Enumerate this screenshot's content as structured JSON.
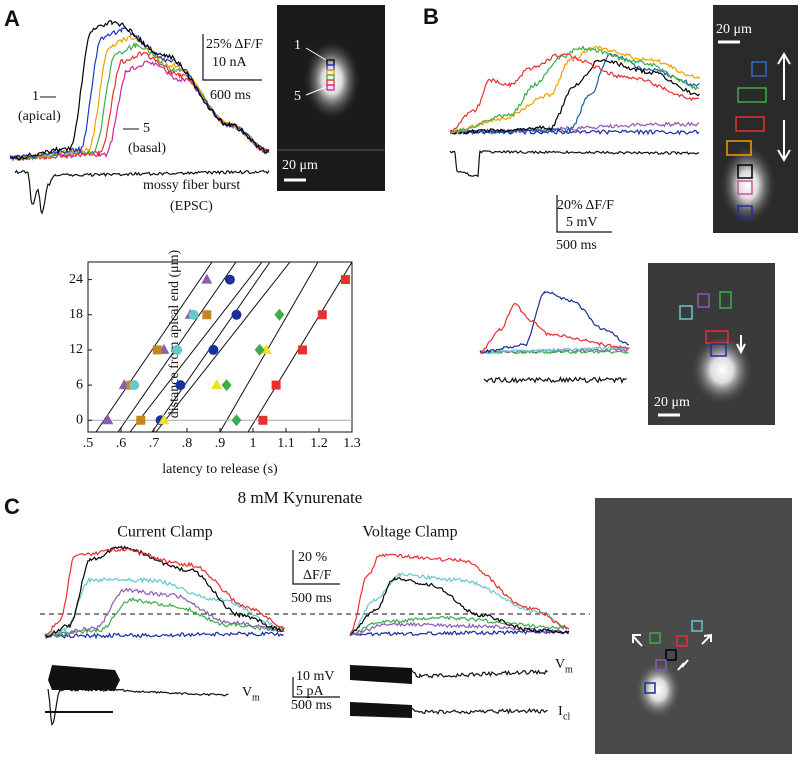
{
  "panels": {
    "a": "A",
    "b": "B",
    "c": "C"
  },
  "panel_a": {
    "label_1": "1",
    "apical": "(apical)",
    "label_5": "5",
    "basal": "(basal)",
    "burst": "mossy fiber burst",
    "epsc": "(EPSC)",
    "scale_df": "25% ΔF/F",
    "scale_na": "10 nA",
    "scale_ms": "600 ms",
    "img_1": "1",
    "img_5": "5",
    "img_scale": "20 μm"
  },
  "panel_b": {
    "img_scale": "20 μm",
    "scale_df": "20%  ΔF/F",
    "scale_mv": "5 mV",
    "scale_ms": "500 ms",
    "img2_scale": "20 μm"
  },
  "panel_c": {
    "title": "8 mM Kynurenate",
    "current_clamp": "Current Clamp",
    "voltage_clamp": "Voltage Clamp",
    "scale_pct": "20 %",
    "scale_df": "ΔF/F",
    "scale_ms": "500 ms",
    "scale_mv": "10 mV",
    "scale_pa": "5 pA",
    "scale_ms2": "500 ms",
    "vm_left": "V",
    "vm_left_sub": "m",
    "vm_right": "V",
    "vm_right_sub": "m",
    "icl": "I",
    "icl_sub": "cl"
  },
  "chart_data": {
    "type": "scatter",
    "xlabel": "latency to release (s)",
    "ylabel": "distance from apical end (μm)",
    "xlim": [
      0.5,
      1.3
    ],
    "ylim": [
      -2,
      27
    ],
    "xticks": [
      {
        "value": 0.5,
        "label": ".5"
      },
      {
        "value": 0.6,
        "label": ".6"
      },
      {
        "value": 0.7,
        "label": ".7"
      },
      {
        "value": 0.8,
        "label": ".8"
      },
      {
        "value": 0.9,
        "label": ".9"
      },
      {
        "value": 1,
        "label": "1"
      },
      {
        "value": 1.1,
        "label": "1.1"
      },
      {
        "value": 1.2,
        "label": "1.2"
      },
      {
        "value": 1.3,
        "label": "1.3"
      }
    ],
    "yticks": [
      0,
      6,
      12,
      18,
      24
    ],
    "zero_line": true,
    "series": [
      {
        "color": "#8e5bb5",
        "marker": "triangle",
        "x": [
          0.56,
          0.61,
          0.73,
          0.81,
          0.86
        ],
        "values": [
          0,
          6,
          12,
          18,
          24
        ]
      },
      {
        "color": "#c8861e",
        "marker": "square",
        "x": [
          0.66,
          0.63,
          0.71,
          0.86
        ],
        "values": [
          0,
          6,
          12,
          18
        ]
      },
      {
        "color": "#66c8c8",
        "marker": "circle",
        "x": [
          0.64,
          0.77,
          0.82
        ],
        "values": [
          6,
          12,
          18
        ]
      },
      {
        "color": "#1a2f9e",
        "marker": "circle",
        "x": [
          0.72,
          0.78,
          0.88,
          0.95,
          0.93
        ],
        "values": [
          0,
          6,
          12,
          18,
          24
        ]
      },
      {
        "color": "#f0e020",
        "marker": "triangle",
        "x": [
          0.73,
          0.89,
          1.04
        ],
        "values": [
          0,
          6,
          12
        ]
      },
      {
        "color": "#3cad4c",
        "marker": "diamond",
        "x": [
          0.95,
          0.92,
          1.02,
          1.08
        ],
        "values": [
          0,
          6,
          12,
          18
        ]
      },
      {
        "color": "#e83030",
        "marker": "square",
        "x": [
          1.03,
          1.07,
          1.15,
          1.21,
          1.28
        ],
        "values": [
          0,
          6,
          12,
          18,
          24
        ]
      }
    ]
  }
}
